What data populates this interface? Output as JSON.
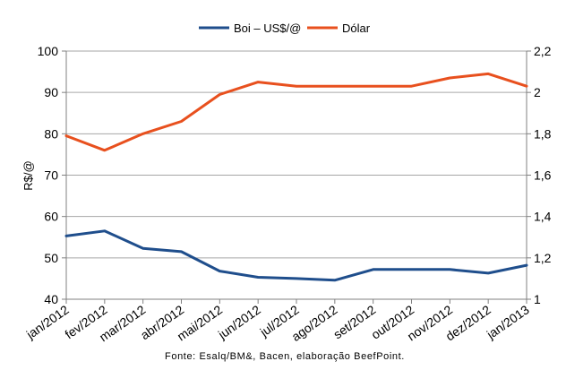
{
  "chart_data": {
    "type": "line",
    "categories": [
      "jan/2012",
      "fev/2012",
      "mar/2012",
      "abr/2012",
      "mai/2012",
      "jun/2012",
      "jul/2012",
      "ago/2012",
      "set/2012",
      "out/2012",
      "nov/2012",
      "dez/2012",
      "jan/2013"
    ],
    "series": [
      {
        "name": "Boi – US$/@",
        "axis": "left",
        "color": "#1f4e8c",
        "values": [
          55.3,
          56.5,
          52.3,
          51.5,
          46.8,
          45.3,
          45.0,
          44.6,
          47.2,
          47.2,
          47.2,
          46.3,
          48.2
        ]
      },
      {
        "name": "Dólar",
        "axis": "right",
        "color": "#e8501e",
        "values": [
          1.79,
          1.72,
          1.8,
          1.86,
          1.99,
          2.05,
          2.03,
          2.03,
          2.03,
          2.03,
          2.07,
          2.09,
          2.03
        ]
      }
    ],
    "ylabel": "R$/@",
    "ylim": [
      40,
      100
    ],
    "y_ticks": [
      "40",
      "50",
      "60",
      "70",
      "80",
      "90",
      "100"
    ],
    "y2lim": [
      1,
      2.2
    ],
    "y2_ticks": [
      "1",
      "1,2",
      "1,4",
      "1,6",
      "1,8",
      "2",
      "2,2"
    ],
    "grid": true,
    "legend_position": "top-center",
    "source": "Fonte: Esalq/BM&, Bacen, elaboração BeefPoint."
  }
}
